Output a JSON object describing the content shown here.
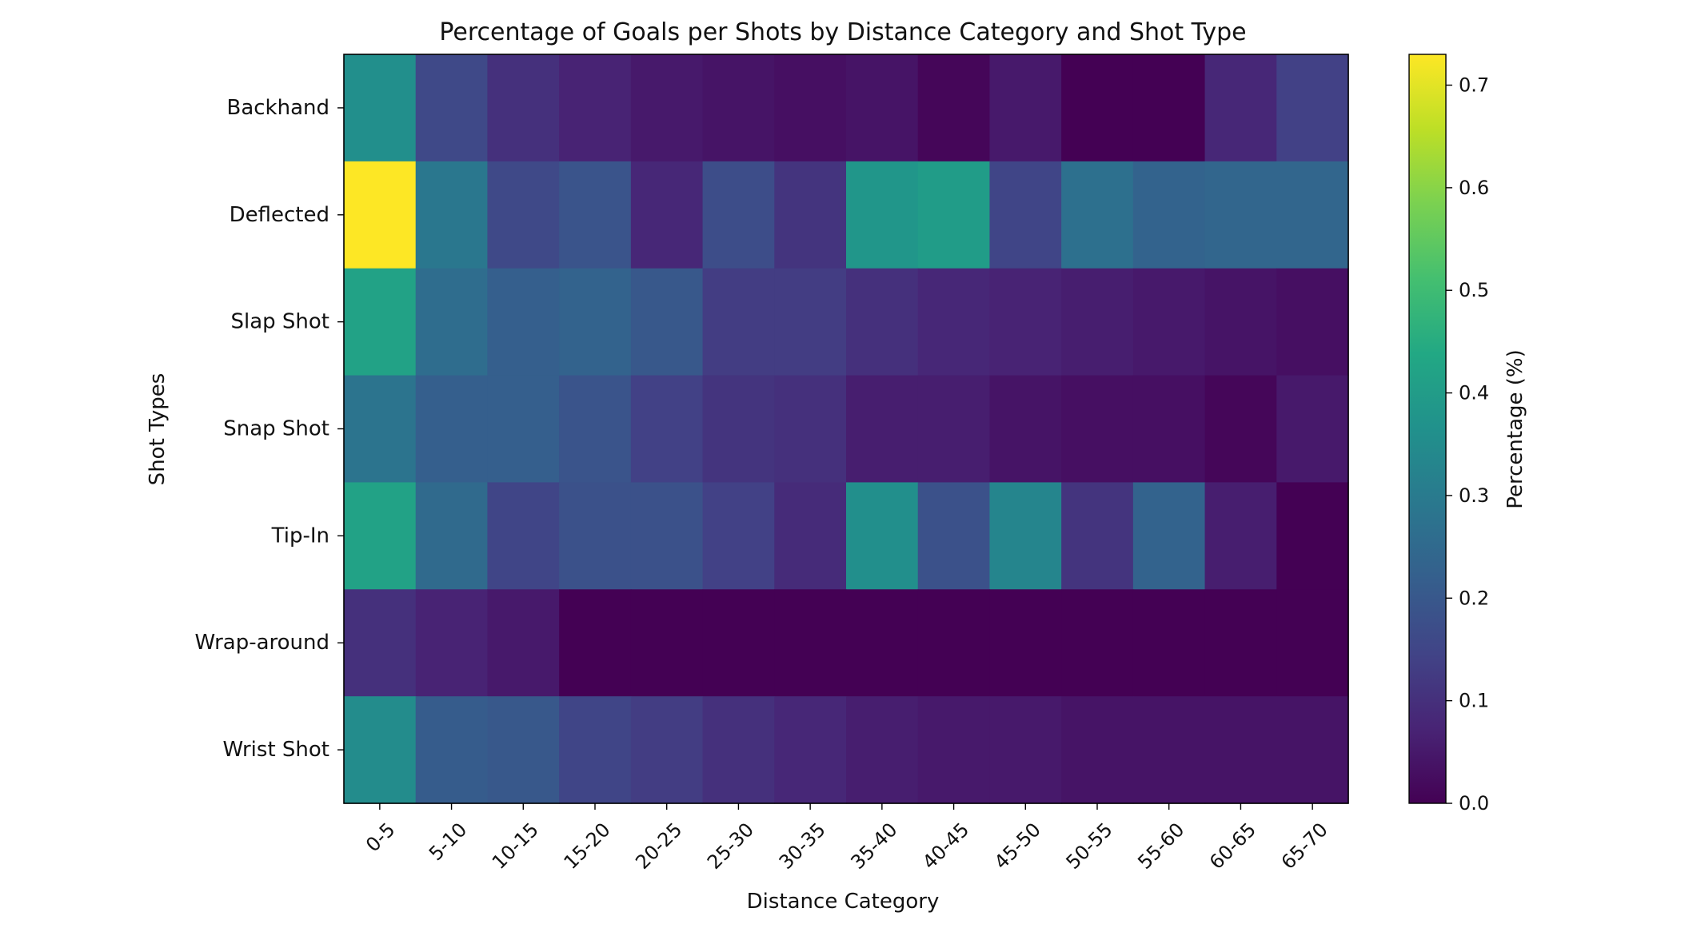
{
  "chart_data": {
    "type": "heatmap",
    "title": "Percentage of Goals per Shots by Distance Category and Shot Type",
    "xlabel": "Distance Category",
    "ylabel": "Shot Types",
    "colorbar_label": "Percentage (%)",
    "colormap": "viridis",
    "color_range": [
      0.0,
      0.73
    ],
    "colorbar_ticks": [
      "0.0",
      "0.1",
      "0.2",
      "0.3",
      "0.4",
      "0.5",
      "0.6",
      "0.7"
    ],
    "x_categories": [
      "0-5",
      "5-10",
      "10-15",
      "15-20",
      "20-25",
      "25-30",
      "30-35",
      "35-40",
      "40-45",
      "45-50",
      "50-55",
      "55-60",
      "60-65",
      "65-70"
    ],
    "y_categories": [
      "Backhand",
      "Deflected",
      "Slap Shot",
      "Snap Shot",
      "Tip-In",
      "Wrap-around",
      "Wrist Shot"
    ],
    "values": [
      [
        0.36,
        0.16,
        0.1,
        0.07,
        0.05,
        0.04,
        0.03,
        0.04,
        0.01,
        0.05,
        0.0,
        0.0,
        0.08,
        0.14
      ],
      [
        0.73,
        0.29,
        0.16,
        0.19,
        0.08,
        0.17,
        0.11,
        0.38,
        0.4,
        0.15,
        0.27,
        0.23,
        0.24,
        0.24
      ],
      [
        0.42,
        0.26,
        0.22,
        0.23,
        0.2,
        0.13,
        0.13,
        0.1,
        0.08,
        0.07,
        0.06,
        0.05,
        0.04,
        0.03
      ],
      [
        0.28,
        0.22,
        0.22,
        0.19,
        0.14,
        0.11,
        0.1,
        0.06,
        0.06,
        0.04,
        0.03,
        0.03,
        0.01,
        0.05
      ],
      [
        0.42,
        0.25,
        0.15,
        0.18,
        0.18,
        0.14,
        0.09,
        0.36,
        0.18,
        0.33,
        0.11,
        0.23,
        0.06,
        0.0
      ],
      [
        0.1,
        0.07,
        0.05,
        0.0,
        0.0,
        0.0,
        0.0,
        0.0,
        0.0,
        0.0,
        0.0,
        0.0,
        0.0,
        0.0
      ],
      [
        0.35,
        0.21,
        0.2,
        0.15,
        0.13,
        0.1,
        0.08,
        0.06,
        0.05,
        0.05,
        0.04,
        0.04,
        0.04,
        0.04
      ]
    ]
  }
}
